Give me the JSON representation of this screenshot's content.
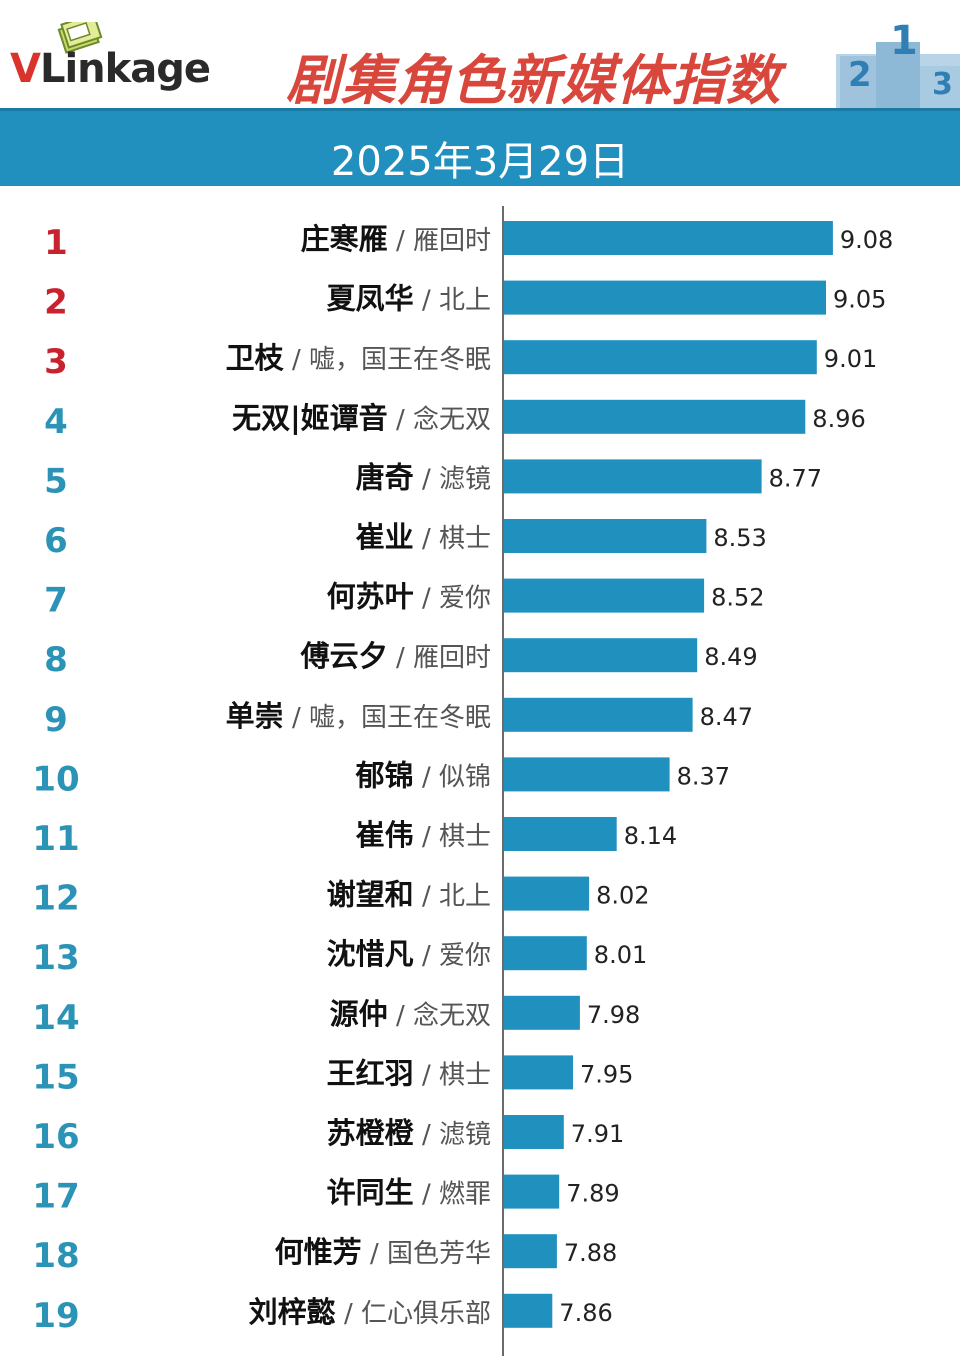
{
  "brand": {
    "logo_v": "V",
    "logo_rest": "Linkage"
  },
  "title": "剧集角色新媒体指数",
  "date": "2025年3月29日",
  "colors": {
    "bar": "#2090bf",
    "rank_top": "#c8222e",
    "rank_rest": "#2b93b5",
    "title": "#d8463c",
    "band": "#2290bf"
  },
  "chart_data": {
    "type": "bar",
    "orientation": "horizontal",
    "xlim": [
      7.65,
      9.08
    ],
    "rows": [
      {
        "rank": "1",
        "name": "庄寒雁",
        "drama": "雁回时",
        "value": 9.08,
        "label": "9.08"
      },
      {
        "rank": "2",
        "name": "夏凤华",
        "drama": "北上",
        "value": 9.05,
        "label": "9.05"
      },
      {
        "rank": "3",
        "name": "卫枝",
        "drama": "嘘，国王在冬眠",
        "value": 9.01,
        "label": "9.01"
      },
      {
        "rank": "4",
        "name": "无双|姬谭音",
        "drama": "念无双",
        "value": 8.96,
        "label": "8.96"
      },
      {
        "rank": "5",
        "name": "唐奇",
        "drama": "滤镜",
        "value": 8.77,
        "label": "8.77"
      },
      {
        "rank": "6",
        "name": "崔业",
        "drama": "棋士",
        "value": 8.53,
        "label": "8.53"
      },
      {
        "rank": "7",
        "name": "何苏叶",
        "drama": "爱你",
        "value": 8.52,
        "label": "8.52"
      },
      {
        "rank": "8",
        "name": "傅云夕",
        "drama": "雁回时",
        "value": 8.49,
        "label": "8.49"
      },
      {
        "rank": "9",
        "name": "单崇",
        "drama": "嘘，国王在冬眠",
        "value": 8.47,
        "label": "8.47"
      },
      {
        "rank": "10",
        "name": "郁锦",
        "drama": "似锦",
        "value": 8.37,
        "label": "8.37"
      },
      {
        "rank": "11",
        "name": "崔伟",
        "drama": "棋士",
        "value": 8.14,
        "label": "8.14"
      },
      {
        "rank": "12",
        "name": "谢望和",
        "drama": "北上",
        "value": 8.02,
        "label": "8.02"
      },
      {
        "rank": "13",
        "name": "沈惜凡",
        "drama": "爱你",
        "value": 8.01,
        "label": "8.01"
      },
      {
        "rank": "14",
        "name": "源仲",
        "drama": "念无双",
        "value": 7.98,
        "label": "7.98"
      },
      {
        "rank": "15",
        "name": "王红羽",
        "drama": "棋士",
        "value": 7.95,
        "label": "7.95"
      },
      {
        "rank": "16",
        "name": "苏橙橙",
        "drama": "滤镜",
        "value": 7.91,
        "label": "7.91"
      },
      {
        "rank": "17",
        "name": "许同生",
        "drama": "燃罪",
        "value": 7.89,
        "label": "7.89"
      },
      {
        "rank": "18",
        "name": "何惟芳",
        "drama": "国色芳华",
        "value": 7.88,
        "label": "7.88"
      },
      {
        "rank": "19",
        "name": "刘梓懿",
        "drama": "仁心俱乐部",
        "value": 7.86,
        "label": "7.86"
      }
    ]
  }
}
